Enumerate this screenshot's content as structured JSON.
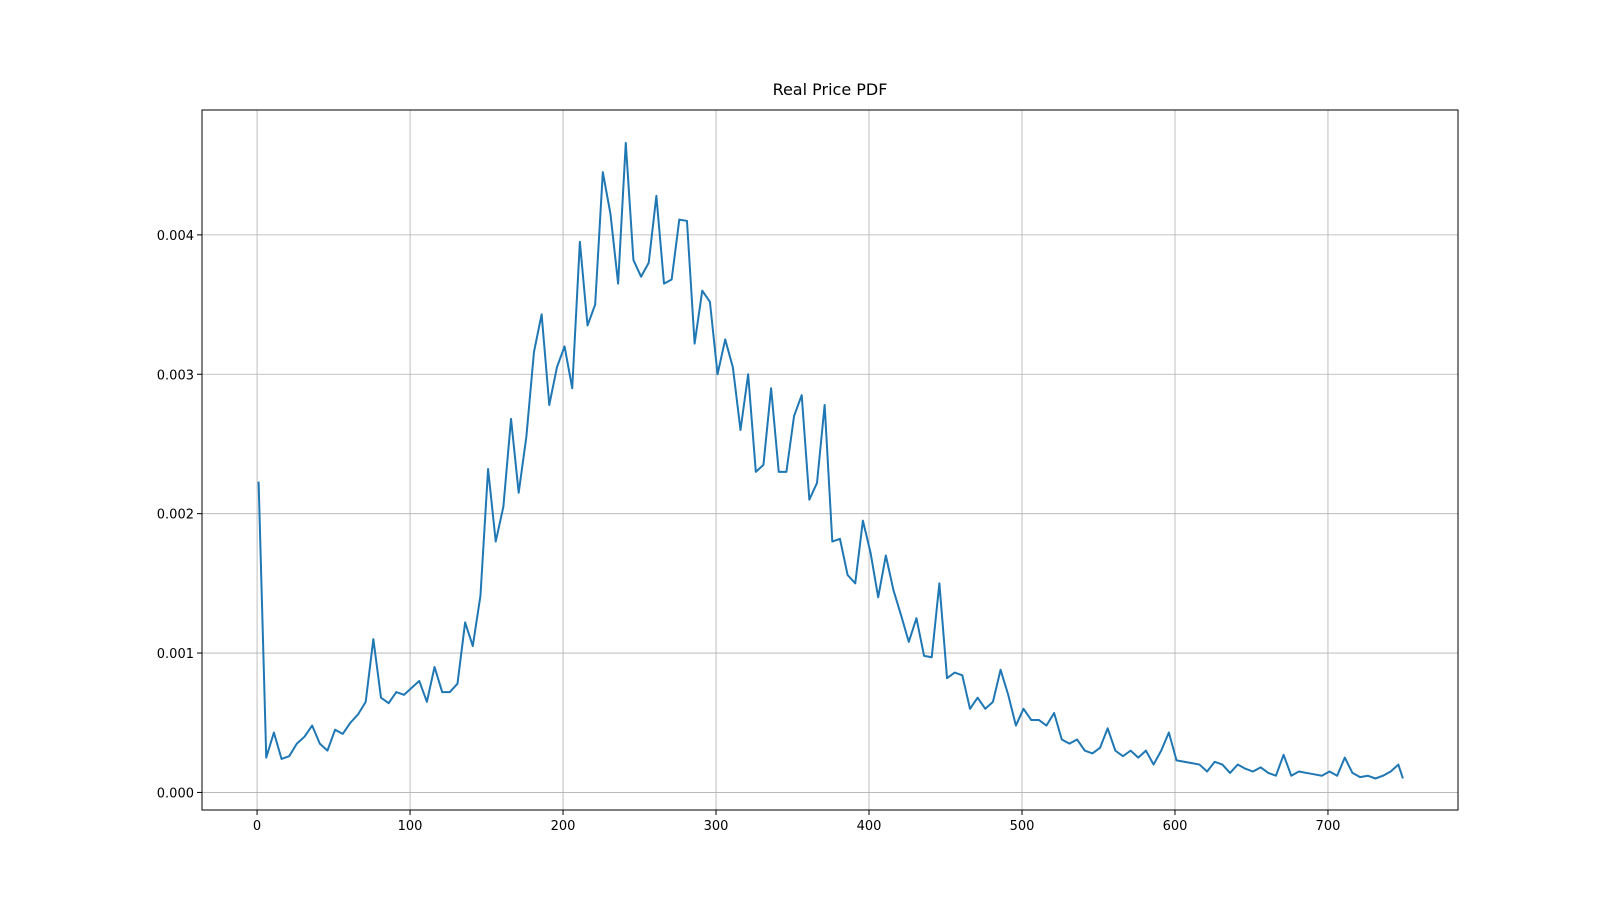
{
  "chart_data": {
    "type": "line",
    "title": "Real Price PDF",
    "x": [
      1,
      6,
      11,
      16,
      21,
      26,
      31,
      36,
      41,
      46,
      51,
      56,
      61,
      66,
      71,
      76,
      81,
      86,
      91,
      96,
      101,
      106,
      111,
      116,
      121,
      126,
      131,
      136,
      141,
      146,
      151,
      156,
      161,
      166,
      171,
      176,
      181,
      186,
      191,
      196,
      201,
      206,
      211,
      216,
      221,
      226,
      231,
      236,
      241,
      246,
      251,
      256,
      261,
      266,
      271,
      276,
      281,
      286,
      291,
      296,
      301,
      306,
      311,
      316,
      321,
      326,
      331,
      336,
      341,
      346,
      351,
      356,
      361,
      366,
      371,
      376,
      381,
      386,
      391,
      396,
      401,
      406,
      411,
      416,
      421,
      426,
      431,
      436,
      441,
      446,
      451,
      456,
      461,
      466,
      471,
      476,
      481,
      486,
      491,
      496,
      501,
      506,
      511,
      516,
      521,
      526,
      531,
      536,
      541,
      546,
      551,
      556,
      561,
      566,
      571,
      576,
      581,
      586,
      591,
      596,
      601,
      606,
      611,
      616,
      621,
      626,
      631,
      636,
      641,
      646,
      651,
      656,
      661,
      666,
      671,
      676,
      681,
      686,
      691,
      696,
      701,
      706,
      711,
      716,
      721,
      726,
      731,
      736,
      741,
      746,
      749
    ],
    "series": [
      {
        "color": "#1f77b4",
        "values": [
          0.00223,
          0.00025,
          0.00043,
          0.00024,
          0.00026,
          0.00035,
          0.0004,
          0.00048,
          0.00035,
          0.0003,
          0.00045,
          0.00042,
          0.0005,
          0.00056,
          0.00065,
          0.0011,
          0.00068,
          0.00064,
          0.00072,
          0.0007,
          0.00075,
          0.0008,
          0.00065,
          0.0009,
          0.00072,
          0.00072,
          0.00078,
          0.00122,
          0.00105,
          0.00141,
          0.00232,
          0.0018,
          0.00205,
          0.00268,
          0.00215,
          0.00255,
          0.00316,
          0.00343,
          0.00278,
          0.00305,
          0.0032,
          0.0029,
          0.00395,
          0.00335,
          0.0035,
          0.00445,
          0.00415,
          0.00365,
          0.00466,
          0.00382,
          0.0037,
          0.0038,
          0.00428,
          0.00365,
          0.00368,
          0.00411,
          0.0041,
          0.00322,
          0.0036,
          0.00352,
          0.003,
          0.00325,
          0.00305,
          0.0026,
          0.003,
          0.0023,
          0.00235,
          0.0029,
          0.0023,
          0.0023,
          0.0027,
          0.00285,
          0.0021,
          0.00222,
          0.00278,
          0.0018,
          0.00182,
          0.00156,
          0.0015,
          0.00195,
          0.00172,
          0.0014,
          0.0017,
          0.00145,
          0.00127,
          0.00108,
          0.00125,
          0.00098,
          0.00097,
          0.0015,
          0.00082,
          0.00086,
          0.00084,
          0.0006,
          0.00068,
          0.0006,
          0.00065,
          0.00088,
          0.0007,
          0.00048,
          0.0006,
          0.00052,
          0.00052,
          0.00048,
          0.00057,
          0.00038,
          0.00035,
          0.00038,
          0.0003,
          0.00028,
          0.00032,
          0.00046,
          0.0003,
          0.00026,
          0.0003,
          0.00025,
          0.0003,
          0.0002,
          0.0003,
          0.00043,
          0.00023,
          0.00022,
          0.00021,
          0.0002,
          0.00015,
          0.00022,
          0.0002,
          0.00014,
          0.0002,
          0.00017,
          0.00015,
          0.00018,
          0.00014,
          0.00012,
          0.00027,
          0.00012,
          0.00015,
          0.00014,
          0.00013,
          0.00012,
          0.00015,
          0.00012,
          0.00025,
          0.00014,
          0.00011,
          0.00012,
          0.0001,
          0.00012,
          0.00015,
          0.0002,
          0.0001
        ]
      }
    ],
    "xlim": [
      -36,
      785
    ],
    "ylim": [
      -0.000126,
      0.004896
    ],
    "xticks": [
      0,
      100,
      200,
      300,
      400,
      500,
      600,
      700
    ],
    "yticks": [
      {
        "value": 0,
        "label": "0.000"
      },
      {
        "value": 0.001,
        "label": "0.001"
      },
      {
        "value": 0.002,
        "label": "0.002"
      },
      {
        "value": 0.003,
        "label": "0.003"
      },
      {
        "value": 0.004,
        "label": "0.004"
      }
    ],
    "grid": true
  }
}
